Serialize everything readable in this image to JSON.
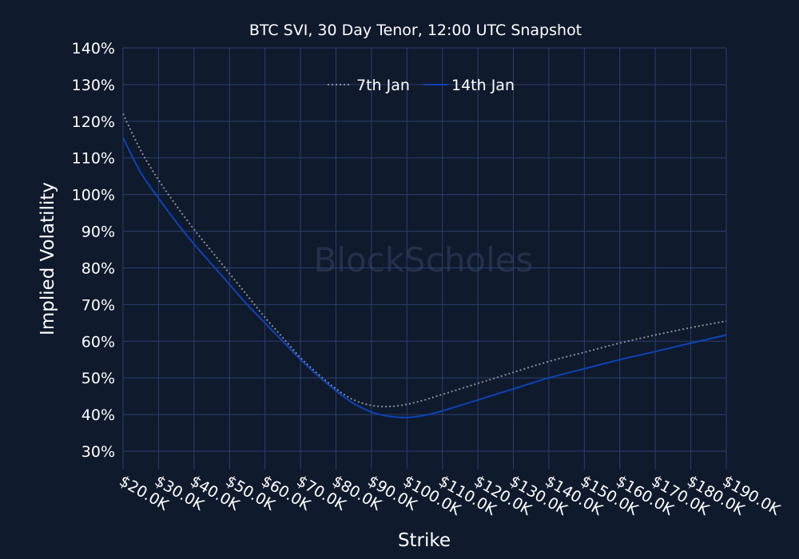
{
  "chart_data": {
    "type": "line",
    "title": "BTC SVI, 30 Day Tenor, 12:00 UTC Snapshot",
    "xlabel": "Strike",
    "ylabel": "Implied Volatility",
    "watermark": "BlockScholes",
    "xlim": [
      20000,
      190000
    ],
    "ylim": [
      0.25,
      1.4
    ],
    "grid": true,
    "legend_position": "top-center",
    "x_ticks": [
      20000,
      30000,
      40000,
      50000,
      60000,
      70000,
      80000,
      90000,
      100000,
      110000,
      120000,
      130000,
      140000,
      150000,
      160000,
      170000,
      180000,
      190000
    ],
    "x_tick_labels": [
      "$20.0K",
      "$30.0K",
      "$40.0K",
      "$50.0K",
      "$60.0K",
      "$70.0K",
      "$80.0K",
      "$90.0K",
      "$100.0K",
      "$110.0K",
      "$120.0K",
      "$130.0K",
      "$140.0K",
      "$150.0K",
      "$160.0K",
      "$170.0K",
      "$180.0K",
      "$190.0K"
    ],
    "y_ticks": [
      0.3,
      0.4,
      0.5,
      0.6,
      0.7,
      0.8,
      0.9,
      1.0,
      1.1,
      1.2,
      1.3,
      1.4
    ],
    "y_tick_labels": [
      "30%",
      "40%",
      "50%",
      "60%",
      "70%",
      "80%",
      "90%",
      "100%",
      "110%",
      "120%",
      "130%",
      "140%"
    ],
    "series": [
      {
        "name": "7th Jan",
        "color": "#8a8f99",
        "style": "dotted",
        "x": [
          20000,
          25000,
          30000,
          35000,
          40000,
          45000,
          50000,
          55000,
          60000,
          65000,
          70000,
          75000,
          80000,
          85000,
          90000,
          95000,
          100000,
          105000,
          110000,
          115000,
          120000,
          130000,
          140000,
          150000,
          160000,
          170000,
          180000,
          190000
        ],
        "y": [
          1.22,
          1.12,
          1.04,
          0.97,
          0.905,
          0.845,
          0.785,
          0.725,
          0.665,
          0.61,
          0.555,
          0.51,
          0.47,
          0.44,
          0.425,
          0.422,
          0.428,
          0.44,
          0.455,
          0.47,
          0.485,
          0.515,
          0.545,
          0.57,
          0.595,
          0.617,
          0.637,
          0.655
        ]
      },
      {
        "name": "14th Jan",
        "color": "#0b44b8",
        "style": "solid",
        "x": [
          20000,
          25000,
          30000,
          35000,
          40000,
          45000,
          50000,
          55000,
          60000,
          65000,
          70000,
          75000,
          80000,
          85000,
          90000,
          95000,
          100000,
          105000,
          110000,
          115000,
          120000,
          130000,
          140000,
          150000,
          160000,
          170000,
          180000,
          190000
        ],
        "y": [
          1.155,
          1.06,
          0.99,
          0.925,
          0.865,
          0.81,
          0.755,
          0.7,
          0.65,
          0.6,
          0.55,
          0.505,
          0.465,
          0.43,
          0.407,
          0.395,
          0.392,
          0.398,
          0.41,
          0.425,
          0.44,
          0.47,
          0.5,
          0.525,
          0.55,
          0.572,
          0.595,
          0.617
        ]
      }
    ]
  }
}
